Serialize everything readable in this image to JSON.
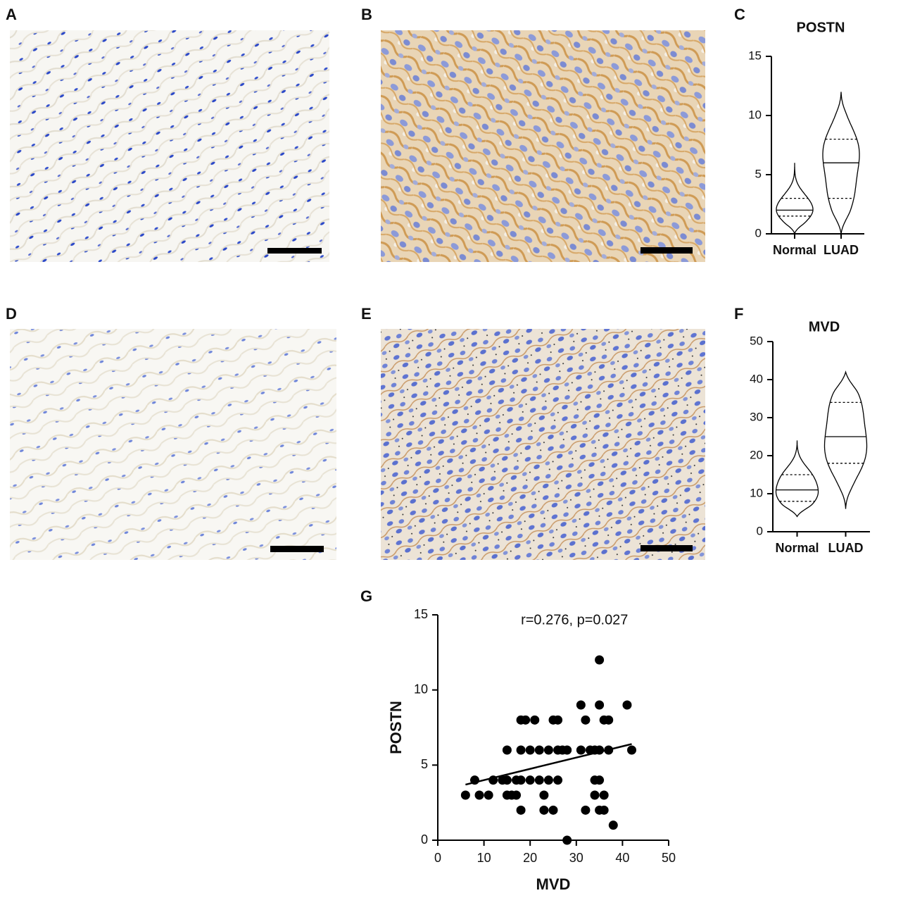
{
  "panel_labels": [
    "A",
    "B",
    "C",
    "D",
    "E",
    "F",
    "G"
  ],
  "chart_data": [
    {
      "type": "violin",
      "title": "POSTN",
      "categories": [
        "Normal",
        "LUAD"
      ],
      "stats": [
        {
          "min": 0,
          "q1": 1.5,
          "median": 2,
          "q3": 3,
          "max": 6
        },
        {
          "min": 0,
          "q1": 3,
          "median": 6,
          "q3": 8,
          "max": 12
        }
      ],
      "ylim": [
        0,
        15
      ],
      "yticks": [
        0,
        5,
        10,
        15
      ],
      "color": "#000000"
    },
    {
      "type": "violin",
      "title": "MVD",
      "categories": [
        "Normal",
        "LUAD"
      ],
      "stats": [
        {
          "min": 4,
          "q1": 8,
          "median": 11,
          "q3": 15,
          "max": 24
        },
        {
          "min": 6,
          "q1": 18,
          "median": 25,
          "q3": 34,
          "max": 42
        }
      ],
      "ylim": [
        0,
        50
      ],
      "yticks": [
        0,
        10,
        20,
        30,
        40,
        50
      ],
      "color": "#000000"
    },
    {
      "type": "scatter",
      "annotation": "r=0.276, p=0.027",
      "xlabel": "MVD",
      "ylabel": "POSTN",
      "x": [
        6,
        8,
        9,
        11,
        12,
        14,
        15,
        15,
        16,
        17,
        17,
        18,
        18,
        18,
        19,
        21,
        15,
        18,
        20,
        22,
        24,
        26,
        27,
        28,
        20,
        22,
        24,
        23,
        23,
        25,
        26,
        25,
        26,
        28,
        31,
        32,
        31,
        33,
        34,
        35,
        35,
        35,
        36,
        37,
        34,
        35,
        34,
        32,
        35,
        36,
        37,
        38,
        41,
        42,
        36
      ],
      "y": [
        3,
        4,
        3,
        3,
        4,
        4,
        4,
        3,
        3,
        3,
        4,
        4,
        2,
        8,
        8,
        8,
        6,
        6,
        6,
        6,
        6,
        6,
        6,
        6,
        4,
        4,
        4,
        3,
        2,
        2,
        4,
        8,
        8,
        0,
        9,
        8,
        6,
        6,
        6,
        12,
        9,
        6,
        8,
        8,
        4,
        4,
        3,
        2,
        2,
        2,
        6,
        1,
        9,
        6,
        3
      ],
      "fit_line": {
        "x": [
          6,
          42
        ],
        "y": [
          3.7,
          6.4
        ]
      },
      "xlim": [
        0,
        50
      ],
      "ylim": [
        0,
        15
      ],
      "xticks": [
        0,
        10,
        20,
        30,
        40,
        50
      ],
      "yticks": [
        0,
        5,
        10,
        15
      ],
      "color": "#000000"
    }
  ]
}
